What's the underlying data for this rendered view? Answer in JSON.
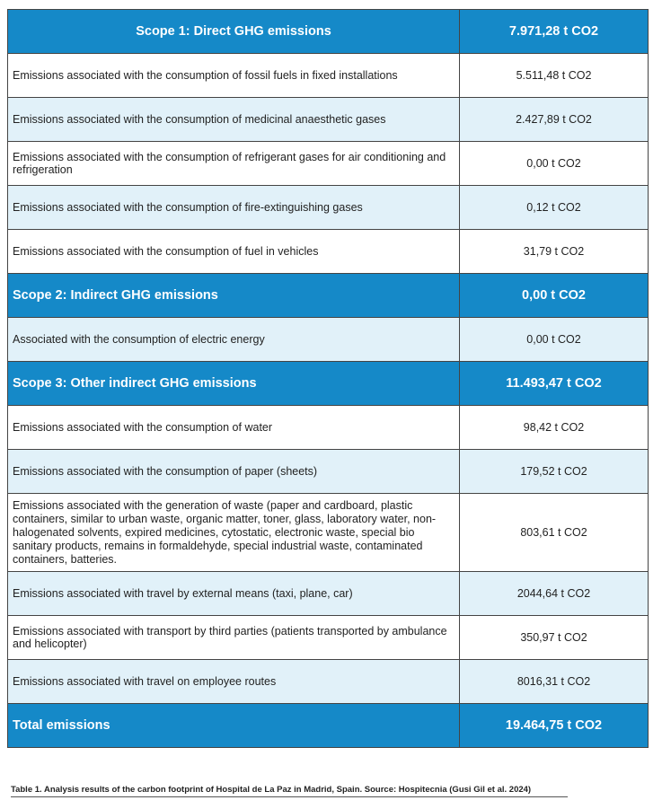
{
  "table": {
    "scope1": {
      "label": "Scope 1: Direct GHG emissions",
      "value": "7.971,28 t CO2"
    },
    "scope1_rows": [
      {
        "label": "Emissions associated with the consumption of fossil fuels in fixed installations",
        "value": "5.511,48 t CO2"
      },
      {
        "label": "Emissions associated with the consumption of medicinal anaesthetic gases",
        "value": "2.427,89 t CO2"
      },
      {
        "label": "Emissions associated with the consumption of refrigerant gases for air conditioning and refrigeration",
        "value": "0,00 t CO2"
      },
      {
        "label": "Emissions associated with the consumption of fire-extinguishing gases",
        "value": "0,12 t CO2"
      },
      {
        "label": "Emissions associated with the consumption of fuel in vehicles",
        "value": "31,79 t CO2"
      }
    ],
    "scope2": {
      "label": "Scope 2: Indirect GHG emissions",
      "value": "0,00 t CO2"
    },
    "scope2_rows": [
      {
        "label": "Associated with the consumption of electric energy",
        "value": "0,00 t CO2"
      }
    ],
    "scope3": {
      "label": "Scope 3: Other indirect GHG emissions",
      "value": "11.493,47 t CO2"
    },
    "scope3_rows": [
      {
        "label": "Emissions associated with the consumption of water",
        "value": "98,42 t CO2"
      },
      {
        "label": "Emissions associated with the consumption of paper (sheets)",
        "value": "179,52 t CO2"
      },
      {
        "label": "Emissions associated with the generation of waste (paper and cardboard, plastic containers, similar to urban waste, organic matter, toner, glass, laboratory water, non-halogenated solvents, expired medicines, cytostatic, electronic waste, special bio sanitary products, remains in formaldehyde, special industrial waste, contaminated containers, batteries.",
        "value": "803,61 t CO2"
      },
      {
        "label": "Emissions associated with travel by external means (taxi, plane, car)",
        "value": "2044,64 t CO2"
      },
      {
        "label": "Emissions associated with transport by third parties (patients transported by ambulance and helicopter)",
        "value": "350,97 t CO2"
      },
      {
        "label": "Emissions associated with travel on employee routes",
        "value": "8016,31 t CO2"
      }
    ],
    "total": {
      "label": "Total emissions",
      "value": "19.464,75 t CO2"
    }
  },
  "caption": "Table 1. Analysis results of the carbon footprint of Hospital de La Paz in Madrid, Spain. Source: Hospitecnia (Gusi Gil et al. 2024)",
  "colors": {
    "header": "#1589c8",
    "alt_row": "#e1f1f9"
  }
}
